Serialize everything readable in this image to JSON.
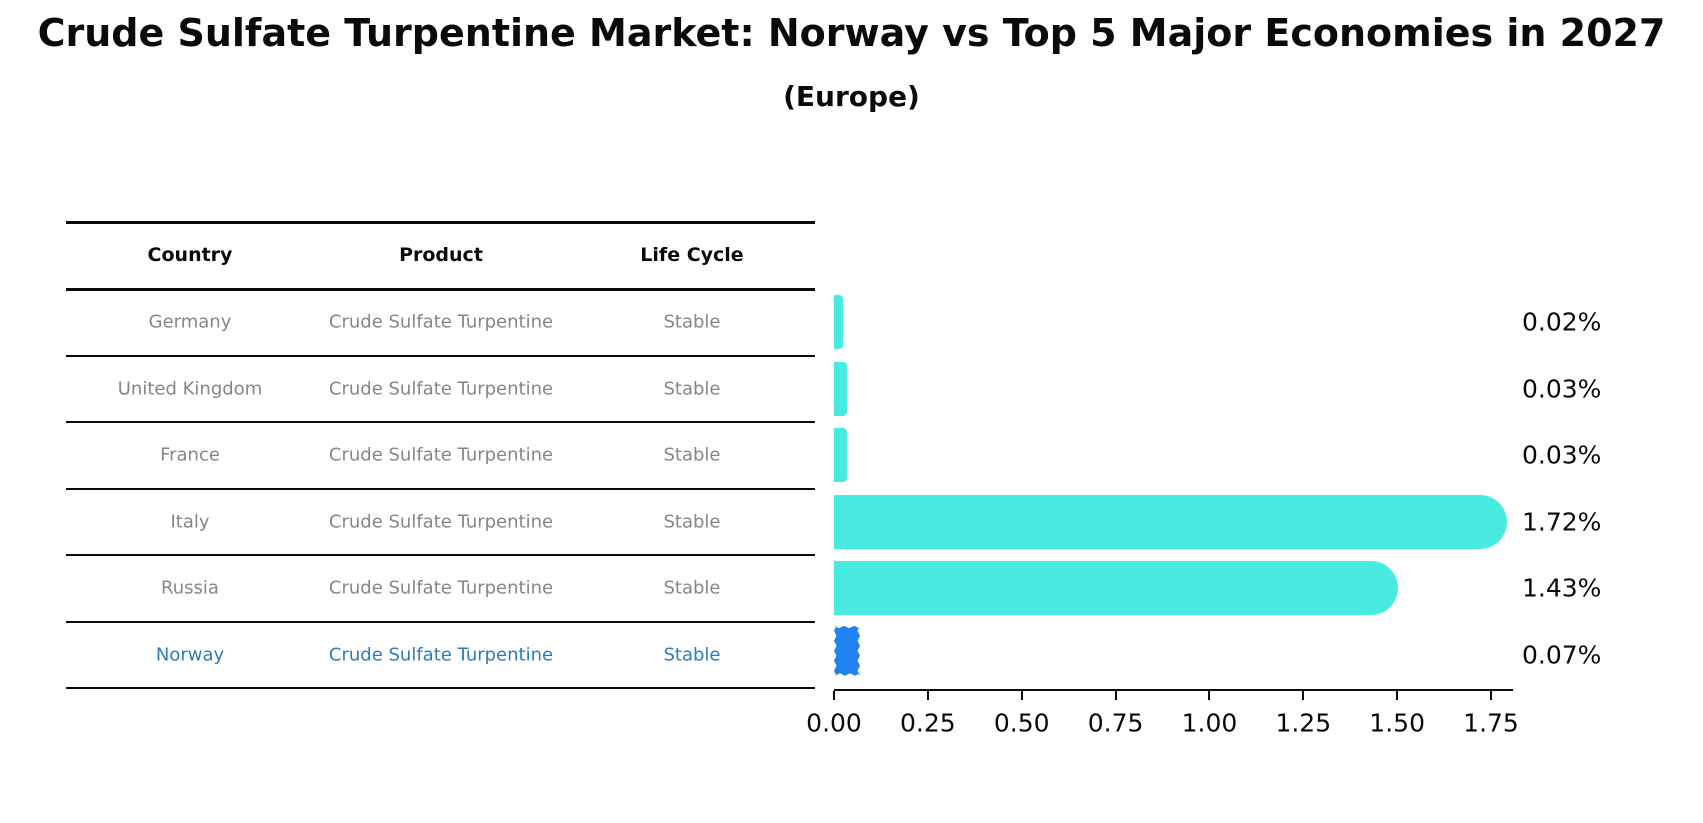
{
  "chart_data": {
    "type": "bar",
    "orientation": "horizontal",
    "title": "Crude Sulfate Turpentine Market: Norway vs Top 5 Major Economies in 2027",
    "subtitle": "(Europe)",
    "categories": [
      "Germany",
      "United Kingdom",
      "France",
      "Italy",
      "Russia",
      "Norway"
    ],
    "values": [
      0.02,
      0.03,
      0.03,
      1.72,
      1.43,
      0.07
    ],
    "value_labels": [
      "0.02%",
      "0.03%",
      "0.03%",
      "1.72%",
      "1.43%",
      "0.07%"
    ],
    "x_ticks": [
      "0.00",
      "0.25",
      "0.50",
      "0.75",
      "1.00",
      "1.25",
      "1.50",
      "1.75"
    ],
    "xlim": [
      0,
      1.8
    ],
    "xlabel": "",
    "ylabel": "",
    "grid": false,
    "legend": "none",
    "highlight_index": 5,
    "bar_color_default": "#49EBE0",
    "bar_color_highlight": "#1E82F0"
  },
  "table": {
    "columns": [
      "Country",
      "Product",
      "Life Cycle"
    ],
    "rows": [
      {
        "country": "Germany",
        "product": "Crude Sulfate Turpentine",
        "life_cycle": "Stable",
        "highlighted": false
      },
      {
        "country": "United Kingdom",
        "product": "Crude Sulfate Turpentine",
        "life_cycle": "Stable",
        "highlighted": false
      },
      {
        "country": "France",
        "product": "Crude Sulfate Turpentine",
        "life_cycle": "Stable",
        "highlighted": false
      },
      {
        "country": "Italy",
        "product": "Crude Sulfate Turpentine",
        "life_cycle": "Stable",
        "highlighted": false
      },
      {
        "country": "Russia",
        "product": "Crude Sulfate Turpentine",
        "life_cycle": "Stable",
        "highlighted": false
      },
      {
        "country": "Norway",
        "product": "Crude Sulfate Turpentine",
        "life_cycle": "Stable",
        "highlighted": true
      }
    ]
  },
  "colors": {
    "bar_cyan": "#49EBE0",
    "bar_blue": "#1E82F0",
    "row_text_gray": "#868686",
    "highlight_text_blue": "#2B7BBE",
    "axis_black": "#0a0a0a",
    "background": "#ffffff"
  }
}
